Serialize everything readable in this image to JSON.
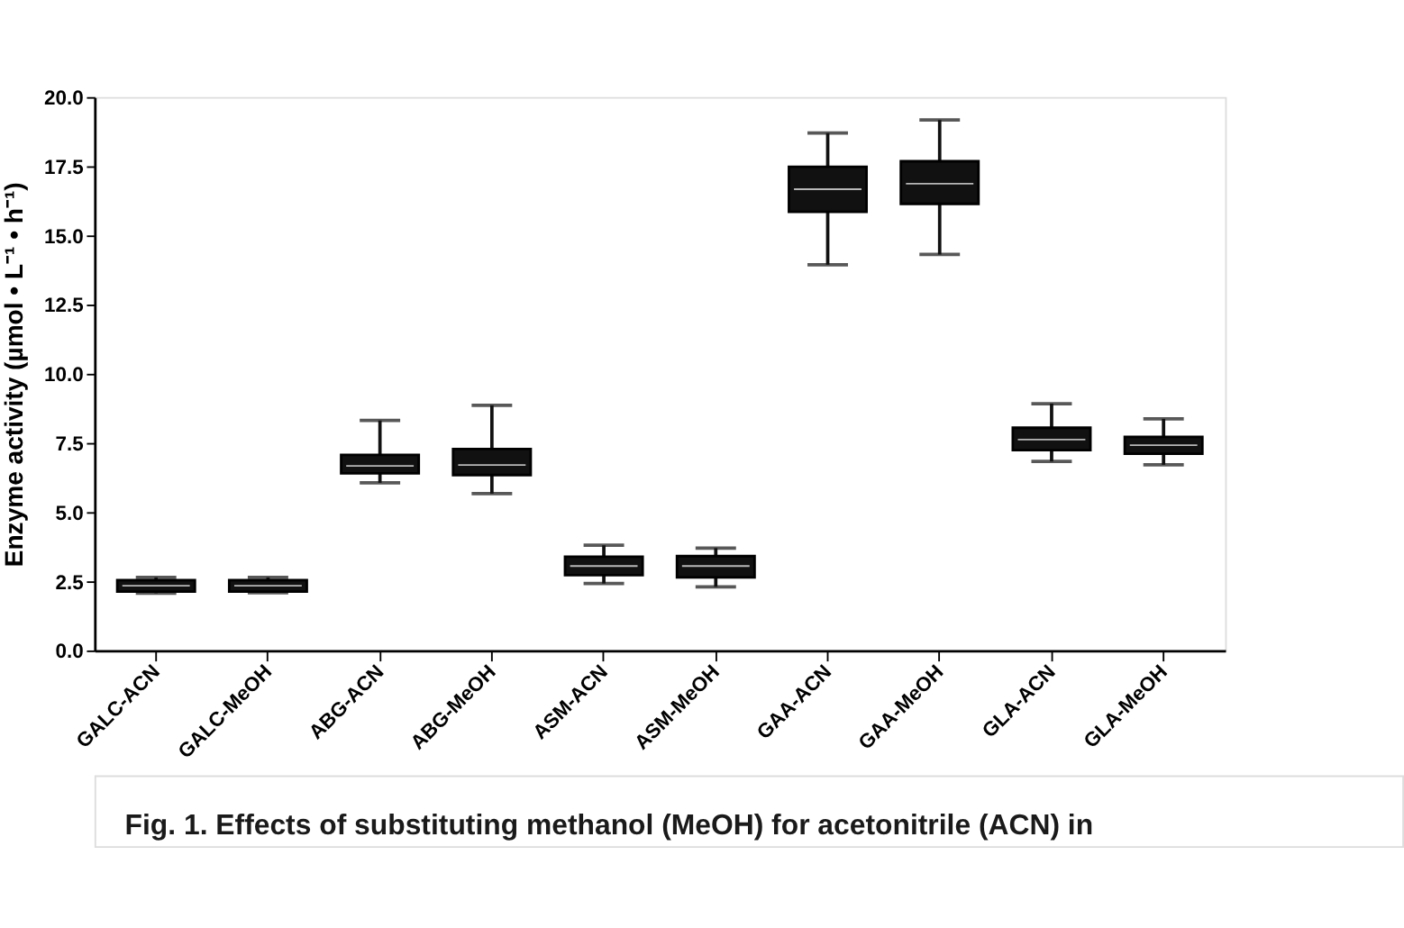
{
  "chart_data": {
    "type": "box",
    "ylabel": "Enzyme activity (µmol • L⁻¹ • h⁻¹)",
    "categories": [
      "GALC-ACN",
      "GALC-MeOH",
      "ABG-ACN",
      "ABG-MeOH",
      "ASM-ACN",
      "ASM-MeOH",
      "GAA-ACN",
      "GAA-MeOH",
      "GLA-ACN",
      "GLA-MeOH"
    ],
    "series": [
      {
        "color": "#111111",
        "boxes": [
          {
            "low": 2.07,
            "q1": 2.13,
            "median": 2.34,
            "q3": 2.54,
            "high": 2.64
          },
          {
            "low": 2.09,
            "q1": 2.13,
            "median": 2.34,
            "q3": 2.54,
            "high": 2.64
          },
          {
            "low": 6.06,
            "q1": 6.4,
            "median": 6.67,
            "q3": 7.07,
            "high": 8.31
          },
          {
            "low": 5.67,
            "q1": 6.34,
            "median": 6.7,
            "q3": 7.28,
            "high": 8.86
          },
          {
            "low": 2.42,
            "q1": 2.72,
            "median": 3.05,
            "q3": 3.39,
            "high": 3.8
          },
          {
            "low": 2.3,
            "q1": 2.64,
            "median": 3.05,
            "q3": 3.41,
            "high": 3.7
          },
          {
            "low": 13.94,
            "q1": 15.85,
            "median": 16.67,
            "q3": 17.48,
            "high": 18.7
          },
          {
            "low": 14.31,
            "q1": 16.14,
            "median": 16.87,
            "q3": 17.68,
            "high": 19.17
          },
          {
            "low": 6.83,
            "q1": 7.24,
            "median": 7.62,
            "q3": 8.05,
            "high": 8.92
          },
          {
            "low": 6.71,
            "q1": 7.11,
            "median": 7.42,
            "q3": 7.72,
            "high": 8.37
          }
        ]
      }
    ],
    "ylim": [
      0,
      20
    ],
    "yticks": [
      {
        "value": 0,
        "label": "0.0"
      },
      {
        "value": 2.5,
        "label": "2.5"
      },
      {
        "value": 5,
        "label": "5.0"
      },
      {
        "value": 7.5,
        "label": "7.5"
      },
      {
        "value": 10,
        "label": "10.0"
      },
      {
        "value": 12.5,
        "label": "12.5"
      },
      {
        "value": 15,
        "label": "15.0"
      },
      {
        "value": 17.5,
        "label": "17.5"
      },
      {
        "value": 20,
        "label": "20.0"
      }
    ],
    "grid": false,
    "annotations": [
      "Fig. 1. Effects of substituting methanol (MeOH) for acetonitrile (ACN) in"
    ]
  }
}
